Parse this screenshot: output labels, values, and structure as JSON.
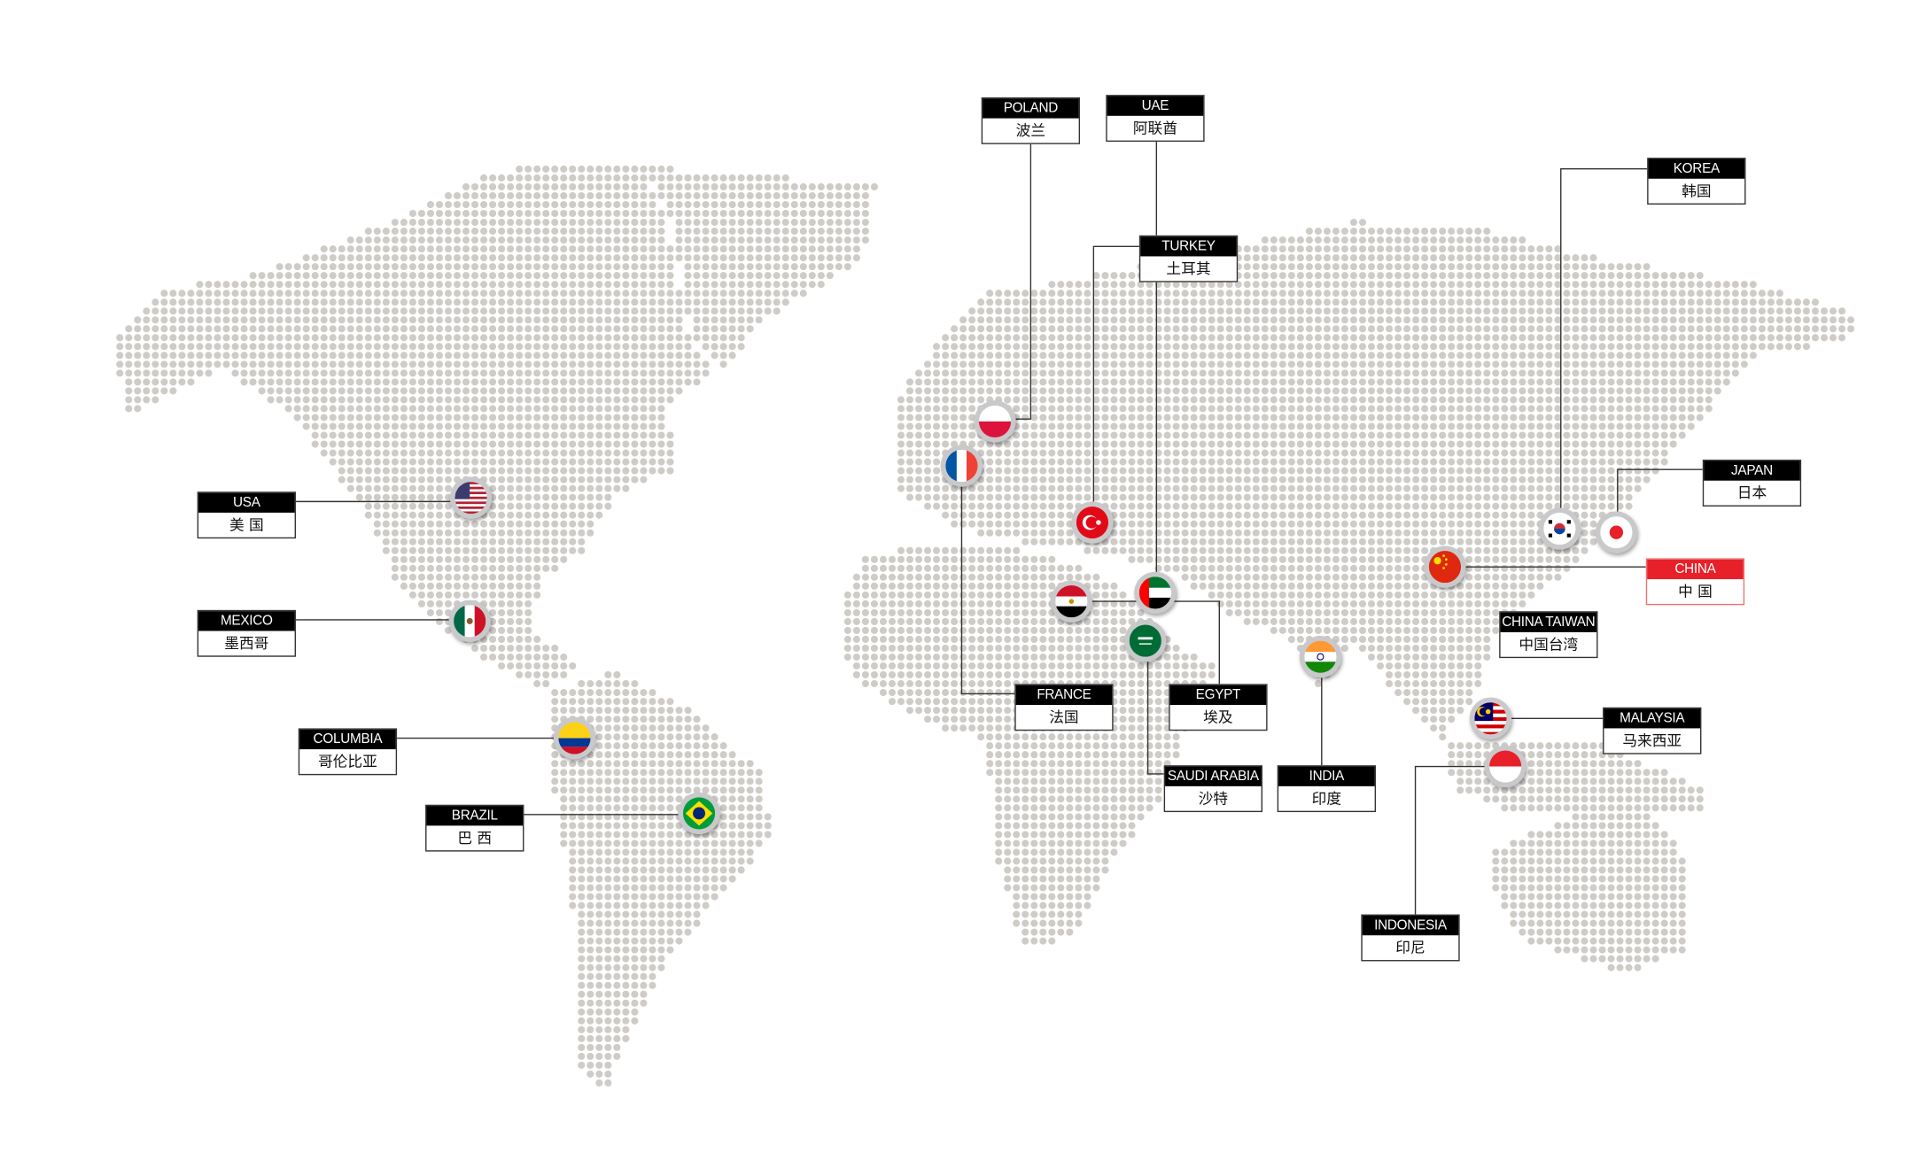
{
  "colors": {
    "dot": "#cfccc8",
    "line": "#333333",
    "label_header": "#000000",
    "highlight": "#e8202a"
  },
  "locations": [
    {
      "id": "poland",
      "en": "POLAND",
      "cn": "波兰",
      "flag": "poland-flag"
    },
    {
      "id": "uae",
      "en": "UAE",
      "cn": "阿联酋",
      "flag": "uae-flag"
    },
    {
      "id": "turkey",
      "en": "TURKEY",
      "cn": "土耳其",
      "flag": "turkey-flag"
    },
    {
      "id": "korea",
      "en": "KOREA",
      "cn": "韩国",
      "flag": "korea-flag"
    },
    {
      "id": "japan",
      "en": "JAPAN",
      "cn": "日本",
      "flag": "japan-flag"
    },
    {
      "id": "china",
      "en": "CHINA",
      "cn": "中 国",
      "flag": "china-flag",
      "highlighted": true
    },
    {
      "id": "taiwan",
      "en": "CHINA TAIWAN",
      "cn": "中国台湾"
    },
    {
      "id": "malaysia",
      "en": "MALAYSIA",
      "cn": "马来西亚",
      "flag": "malaysia-flag"
    },
    {
      "id": "indonesia",
      "en": "INDONESIA",
      "cn": "印尼",
      "flag": "indonesia-flag"
    },
    {
      "id": "india",
      "en": "INDIA",
      "cn": "印度",
      "flag": "india-flag"
    },
    {
      "id": "saudi",
      "en": "SAUDI ARABIA",
      "cn": "沙特",
      "flag": "saudi-flag"
    },
    {
      "id": "egypt",
      "en": "EGYPT",
      "cn": "埃及",
      "flag": "egypt-flag"
    },
    {
      "id": "france",
      "en": "FRANCE",
      "cn": "法国",
      "flag": "france-flag"
    },
    {
      "id": "usa",
      "en": "USA",
      "cn": "美 国",
      "flag": "usa-flag"
    },
    {
      "id": "mexico",
      "en": "MEXICO",
      "cn": "墨西哥",
      "flag": "mexico-flag"
    },
    {
      "id": "columbia",
      "en": "COLUMBIA",
      "cn": "哥伦比亚",
      "flag": "colombia-flag"
    },
    {
      "id": "brazil",
      "en": "BRAZIL",
      "cn": "巴 西",
      "flag": "brazil-flag"
    }
  ]
}
